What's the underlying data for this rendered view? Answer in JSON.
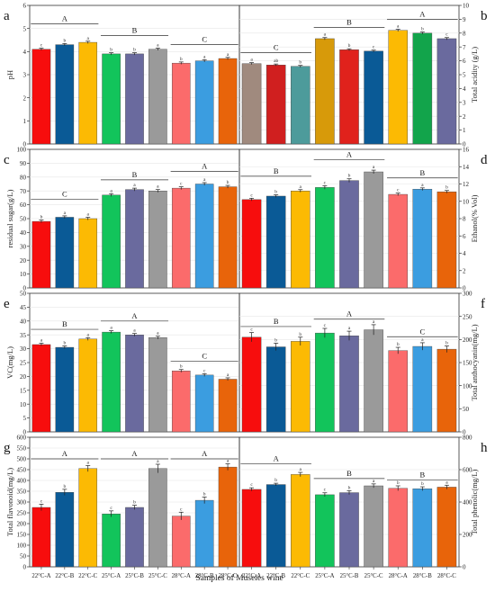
{
  "figure": {
    "xlabel": "Samples of Museles wine",
    "categories": [
      "22°C-A",
      "22°C-B",
      "22°C-C",
      "25°C-A",
      "25°C-B",
      "25°C-C",
      "28°C-A",
      "28°C-B",
      "28°C-C"
    ]
  },
  "chart_data": [
    {
      "panel": "a",
      "type": "bar",
      "ylabel": "pH",
      "ylim": [
        0,
        6
      ],
      "ticks": [
        0,
        1,
        2,
        3,
        4,
        5,
        6
      ],
      "axis_side": "left",
      "categories": [
        "22°C-A",
        "22°C-B",
        "22°C-C",
        "25°C-A",
        "25°C-B",
        "25°C-C",
        "28°C-A",
        "28°C-B",
        "28°C-C"
      ],
      "values": [
        4.1,
        4.3,
        4.4,
        3.9,
        3.9,
        4.1,
        3.5,
        3.6,
        3.7
      ],
      "errors": [
        0.05,
        0.05,
        0.05,
        0.05,
        0.05,
        0.05,
        0.05,
        0.05,
        0.05
      ],
      "letters": [
        "c",
        "b",
        "a",
        "b",
        "b",
        "a",
        "b",
        "a",
        "a"
      ],
      "colors": [
        "#f70d0d",
        "#0a5a96",
        "#fcba03",
        "#12c45b",
        "#6a6a9e",
        "#9a9a9a",
        "#fb6b6b",
        "#3b9de0",
        "#e8640a"
      ],
      "groups": [
        {
          "label": "A",
          "start": 0,
          "end": 2,
          "ref": 5.2
        },
        {
          "label": "B",
          "start": 3,
          "end": 5,
          "ref": 4.7
        },
        {
          "label": "C",
          "start": 6,
          "end": 8,
          "ref": 4.3
        }
      ]
    },
    {
      "panel": "b",
      "type": "bar",
      "ylabel": "Total acidity (g/L)",
      "ylim": [
        0,
        10
      ],
      "ticks": [
        0,
        1,
        2,
        3,
        4,
        5,
        6,
        7,
        8,
        9,
        10
      ],
      "axis_side": "right",
      "categories": [
        "22°C-A",
        "22°C-B",
        "22°C-C",
        "25°C-A",
        "25°C-B",
        "25°C-C",
        "28°C-A",
        "28°C-B",
        "28°C-C"
      ],
      "values": [
        5.8,
        5.7,
        5.6,
        7.6,
        6.8,
        6.7,
        8.2,
        8.0,
        7.6
      ],
      "errors": [
        0.07,
        0.07,
        0.07,
        0.08,
        0.07,
        0.07,
        0.08,
        0.08,
        0.08
      ],
      "letters": [
        "a",
        "ab",
        "b",
        "a",
        "b",
        "c",
        "a",
        "b",
        "c"
      ],
      "colors": [
        "#a08a7e",
        "#d01f1f",
        "#4d9b9b",
        "#d79a0a",
        "#e0221c",
        "#0a5a96",
        "#fcba03",
        "#12a44b",
        "#6a6a9e"
      ],
      "groups": [
        {
          "label": "C",
          "start": 0,
          "end": 2,
          "ref": 6.6
        },
        {
          "label": "B",
          "start": 3,
          "end": 5,
          "ref": 8.4
        },
        {
          "label": "A",
          "start": 6,
          "end": 8,
          "ref": 9.0
        }
      ]
    },
    {
      "panel": "c",
      "type": "bar",
      "ylabel": "residual sugar(g/L)",
      "ylim": [
        0,
        100
      ],
      "ticks": [
        0,
        10,
        20,
        30,
        40,
        50,
        60,
        70,
        80,
        90,
        100
      ],
      "axis_side": "left",
      "categories": [
        "22°C-A",
        "22°C-B",
        "22°C-C",
        "25°C-A",
        "25°C-B",
        "25°C-C",
        "28°C-A",
        "28°C-B",
        "28°C-C"
      ],
      "values": [
        48,
        51,
        50,
        67,
        71,
        70,
        72,
        75,
        73
      ],
      "errors": [
        1,
        1,
        1,
        1,
        1,
        1,
        1,
        1,
        1
      ],
      "letters": [
        "b",
        "a",
        "a",
        "a",
        "a",
        "a",
        "c",
        "a",
        "b"
      ],
      "colors": [
        "#f70d0d",
        "#0a5a96",
        "#fcba03",
        "#12c45b",
        "#6a6a9e",
        "#9a9a9a",
        "#fb6b6b",
        "#3b9de0",
        "#e8640a"
      ],
      "groups": [
        {
          "label": "C",
          "start": 0,
          "end": 2,
          "ref": 64
        },
        {
          "label": "B",
          "start": 3,
          "end": 5,
          "ref": 78
        },
        {
          "label": "A",
          "start": 6,
          "end": 8,
          "ref": 84
        }
      ]
    },
    {
      "panel": "d",
      "type": "bar",
      "ylabel": "Ethanol(% Vol)",
      "ylim": [
        0,
        16
      ],
      "ticks": [
        0,
        2,
        4,
        6,
        8,
        10,
        12,
        14,
        16
      ],
      "axis_side": "right",
      "categories": [
        "22°C-A",
        "22°C-B",
        "22°C-C",
        "25°C-A",
        "25°C-B",
        "25°C-C",
        "28°C-A",
        "28°C-B",
        "28°C-C"
      ],
      "values": [
        10.2,
        10.6,
        11.2,
        11.6,
        12.4,
        13.4,
        10.8,
        11.4,
        11.1
      ],
      "errors": [
        0.15,
        0.15,
        0.15,
        0.2,
        0.2,
        0.2,
        0.15,
        0.15,
        0.15
      ],
      "letters": [
        "c",
        "b",
        "a",
        "c",
        "b",
        "a",
        "c",
        "a",
        "b"
      ],
      "colors": [
        "#f70d0d",
        "#0a5a96",
        "#fcba03",
        "#12c45b",
        "#6a6a9e",
        "#9a9a9a",
        "#fb6b6b",
        "#3b9de0",
        "#e8640a"
      ],
      "groups": [
        {
          "label": "B",
          "start": 0,
          "end": 2,
          "ref": 12.9
        },
        {
          "label": "A",
          "start": 3,
          "end": 5,
          "ref": 14.8
        },
        {
          "label": "B",
          "start": 6,
          "end": 8,
          "ref": 12.7
        }
      ]
    },
    {
      "panel": "e",
      "type": "bar",
      "ylabel": "VC(mg/L)",
      "ylim": [
        0,
        50
      ],
      "ticks": [
        0,
        5,
        10,
        15,
        20,
        25,
        30,
        35,
        40,
        45,
        50
      ],
      "axis_side": "left",
      "categories": [
        "22°C-A",
        "22°C-B",
        "22°C-C",
        "25°C-A",
        "25°C-B",
        "25°C-C",
        "28°C-A",
        "28°C-B",
        "28°C-C"
      ],
      "values": [
        31.5,
        30.5,
        33.5,
        36,
        35,
        34,
        22,
        20.5,
        19
      ],
      "errors": [
        0.5,
        0.5,
        0.5,
        0.5,
        0.5,
        0.5,
        0.5,
        0.5,
        0.5
      ],
      "letters": [
        "a",
        "b",
        "a",
        "a",
        "a",
        "a",
        "b",
        "c",
        "a"
      ],
      "colors": [
        "#f70d0d",
        "#0a5a96",
        "#fcba03",
        "#12c45b",
        "#6a6a9e",
        "#9a9a9a",
        "#fb6b6b",
        "#3b9de0",
        "#e8640a"
      ],
      "groups": [
        {
          "label": "B",
          "start": 0,
          "end": 2,
          "ref": 37
        },
        {
          "label": "A",
          "start": 3,
          "end": 5,
          "ref": 40
        },
        {
          "label": "C",
          "start": 6,
          "end": 8,
          "ref": 25.5
        }
      ]
    },
    {
      "panel": "f",
      "type": "bar",
      "ylabel": "Total anthocyanin(mg/L)",
      "ylim": [
        0,
        300
      ],
      "ticks": [
        0,
        50,
        100,
        150,
        200,
        250,
        300
      ],
      "axis_side": "right",
      "categories": [
        "22°C-A",
        "22°C-B",
        "22°C-C",
        "25°C-A",
        "25°C-B",
        "25°C-C",
        "28°C-A",
        "28°C-B",
        "28°C-C"
      ],
      "values": [
        205,
        184,
        196,
        214,
        208,
        221,
        176,
        185,
        179
      ],
      "errors": [
        10,
        8,
        9,
        10,
        10,
        11,
        7,
        8,
        7
      ],
      "letters": [
        "c",
        "b",
        "b",
        "c",
        "a",
        "a",
        "b",
        "a",
        "b"
      ],
      "colors": [
        "#f70d0d",
        "#0a5a96",
        "#fcba03",
        "#12c45b",
        "#6a6a9e",
        "#9a9a9a",
        "#fb6b6b",
        "#3b9de0",
        "#e8640a"
      ],
      "groups": [
        {
          "label": "B",
          "start": 0,
          "end": 2,
          "ref": 228
        },
        {
          "label": "A",
          "start": 3,
          "end": 5,
          "ref": 244
        },
        {
          "label": "C",
          "start": 6,
          "end": 8,
          "ref": 206
        }
      ]
    },
    {
      "panel": "g",
      "type": "bar",
      "ylabel": "Total flavonoid(mg/L)",
      "ylim": [
        0,
        600
      ],
      "ticks": [
        0,
        50,
        100,
        150,
        200,
        250,
        300,
        350,
        400,
        450,
        500,
        550,
        600
      ],
      "axis_side": "left",
      "categories": [
        "22°C-A",
        "22°C-B",
        "22°C-C",
        "25°C-A",
        "25°C-B",
        "25°C-C",
        "28°C-A",
        "28°C-B",
        "28°C-C"
      ],
      "values": [
        275,
        345,
        455,
        245,
        275,
        455,
        235,
        308,
        462
      ],
      "errors": [
        15,
        14,
        14,
        14,
        10,
        20,
        18,
        15,
        15
      ],
      "letters": [
        "c",
        "b",
        "a",
        "c",
        "b",
        "a",
        "c",
        "b",
        "a"
      ],
      "colors": [
        "#f70d0d",
        "#0a5a96",
        "#fcba03",
        "#12c45b",
        "#6a6a9e",
        "#9a9a9a",
        "#fb6b6b",
        "#3b9de0",
        "#e8640a"
      ],
      "groups": [
        {
          "label": "A",
          "start": 0,
          "end": 2,
          "ref": 500
        },
        {
          "label": "A",
          "start": 3,
          "end": 5,
          "ref": 500
        },
        {
          "label": "A",
          "start": 6,
          "end": 8,
          "ref": 500
        }
      ]
    },
    {
      "panel": "h",
      "type": "bar",
      "ylabel": "Total phenolic(mg/L)",
      "ylim": [
        0,
        800
      ],
      "ticks": [
        0,
        200,
        400,
        600,
        800
      ],
      "axis_side": "right",
      "categories": [
        "22°C-A",
        "22°C-B",
        "22°C-C",
        "25°C-A",
        "25°C-B",
        "25°C-C",
        "28°C-A",
        "28°C-B",
        "28°C-C"
      ],
      "values": [
        478,
        508,
        570,
        445,
        458,
        500,
        485,
        482,
        492
      ],
      "errors": [
        10,
        8,
        13,
        12,
        12,
        12,
        15,
        12,
        12
      ],
      "letters": [
        "c",
        "b",
        "a",
        "c",
        "b",
        "a",
        "b",
        "b",
        "a"
      ],
      "colors": [
        "#f70d0d",
        "#0a5a96",
        "#fcba03",
        "#12c45b",
        "#6a6a9e",
        "#9a9a9a",
        "#fb6b6b",
        "#3b9de0",
        "#e8640a"
      ],
      "groups": [
        {
          "label": "A",
          "start": 0,
          "end": 2,
          "ref": 635
        },
        {
          "label": "B",
          "start": 3,
          "end": 5,
          "ref": 545
        },
        {
          "label": "B",
          "start": 6,
          "end": 8,
          "ref": 535
        }
      ]
    }
  ]
}
